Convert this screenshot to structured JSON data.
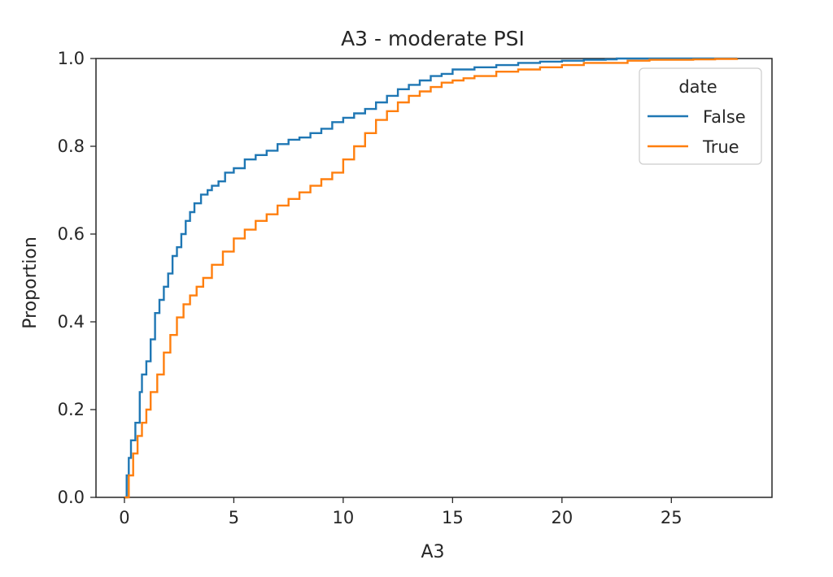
{
  "chart_data": {
    "type": "line",
    "title": "A3 - moderate PSI",
    "xlabel": "A3",
    "ylabel": "Proportion",
    "xlim": [
      -1.3,
      29.6
    ],
    "ylim": [
      0,
      1
    ],
    "xticks": [
      0,
      5,
      10,
      15,
      20,
      25
    ],
    "yticks": [
      0.0,
      0.2,
      0.4,
      0.6,
      0.8,
      1.0
    ],
    "xtick_labels": [
      "0",
      "5",
      "10",
      "15",
      "20",
      "25"
    ],
    "ytick_labels": [
      "0.0",
      "0.2",
      "0.4",
      "0.6",
      "0.8",
      "1.0"
    ],
    "grid": false,
    "step": true,
    "legend": {
      "title": "date",
      "position": "top-right"
    },
    "series": [
      {
        "name": "False",
        "color": "#1f77b4",
        "x": [
          0,
          0.1,
          0.2,
          0.3,
          0.5,
          0.7,
          0.8,
          1.0,
          1.2,
          1.4,
          1.6,
          1.8,
          2.0,
          2.2,
          2.4,
          2.6,
          2.8,
          3.0,
          3.2,
          3.5,
          3.8,
          4.0,
          4.3,
          4.6,
          5.0,
          5.5,
          6.0,
          6.5,
          7.0,
          7.5,
          8.0,
          8.5,
          9.0,
          9.5,
          10.0,
          10.5,
          11.0,
          11.5,
          12.0,
          12.5,
          13.0,
          13.5,
          14.0,
          14.5,
          15.0,
          16.0,
          17.0,
          18.0,
          19.0,
          20.0,
          21.0,
          22.0,
          22.5,
          24.0,
          26.0,
          28.0
        ],
        "y": [
          0.0,
          0.05,
          0.09,
          0.13,
          0.17,
          0.24,
          0.28,
          0.31,
          0.36,
          0.42,
          0.45,
          0.48,
          0.51,
          0.55,
          0.57,
          0.6,
          0.63,
          0.65,
          0.67,
          0.69,
          0.7,
          0.71,
          0.72,
          0.74,
          0.75,
          0.77,
          0.78,
          0.79,
          0.805,
          0.815,
          0.82,
          0.83,
          0.84,
          0.855,
          0.865,
          0.875,
          0.885,
          0.9,
          0.915,
          0.93,
          0.94,
          0.95,
          0.96,
          0.965,
          0.975,
          0.98,
          0.985,
          0.99,
          0.993,
          0.995,
          0.997,
          0.998,
          1.0,
          1.0,
          1.0,
          1.0
        ]
      },
      {
        "name": "True",
        "color": "#ff7f0e",
        "x": [
          0,
          0.2,
          0.4,
          0.6,
          0.8,
          1.0,
          1.2,
          1.5,
          1.8,
          2.1,
          2.4,
          2.7,
          3.0,
          3.3,
          3.6,
          4.0,
          4.5,
          5.0,
          5.5,
          6.0,
          6.5,
          7.0,
          7.5,
          8.0,
          8.5,
          9.0,
          9.5,
          10.0,
          10.5,
          11.0,
          11.5,
          12.0,
          12.5,
          13.0,
          13.5,
          14.0,
          14.5,
          15.0,
          15.5,
          16.0,
          17.0,
          18.0,
          19.0,
          20.0,
          21.0,
          22.0,
          23.0,
          24.0,
          25.0,
          26.0,
          27.0,
          28.0
        ],
        "y": [
          0.0,
          0.05,
          0.1,
          0.14,
          0.17,
          0.2,
          0.24,
          0.28,
          0.33,
          0.37,
          0.41,
          0.44,
          0.46,
          0.48,
          0.5,
          0.53,
          0.56,
          0.59,
          0.61,
          0.63,
          0.645,
          0.665,
          0.68,
          0.695,
          0.71,
          0.725,
          0.74,
          0.77,
          0.8,
          0.83,
          0.86,
          0.88,
          0.9,
          0.915,
          0.925,
          0.935,
          0.945,
          0.95,
          0.955,
          0.96,
          0.97,
          0.975,
          0.98,
          0.985,
          0.99,
          0.99,
          0.995,
          0.997,
          0.997,
          0.998,
          0.999,
          1.0
        ]
      }
    ]
  }
}
